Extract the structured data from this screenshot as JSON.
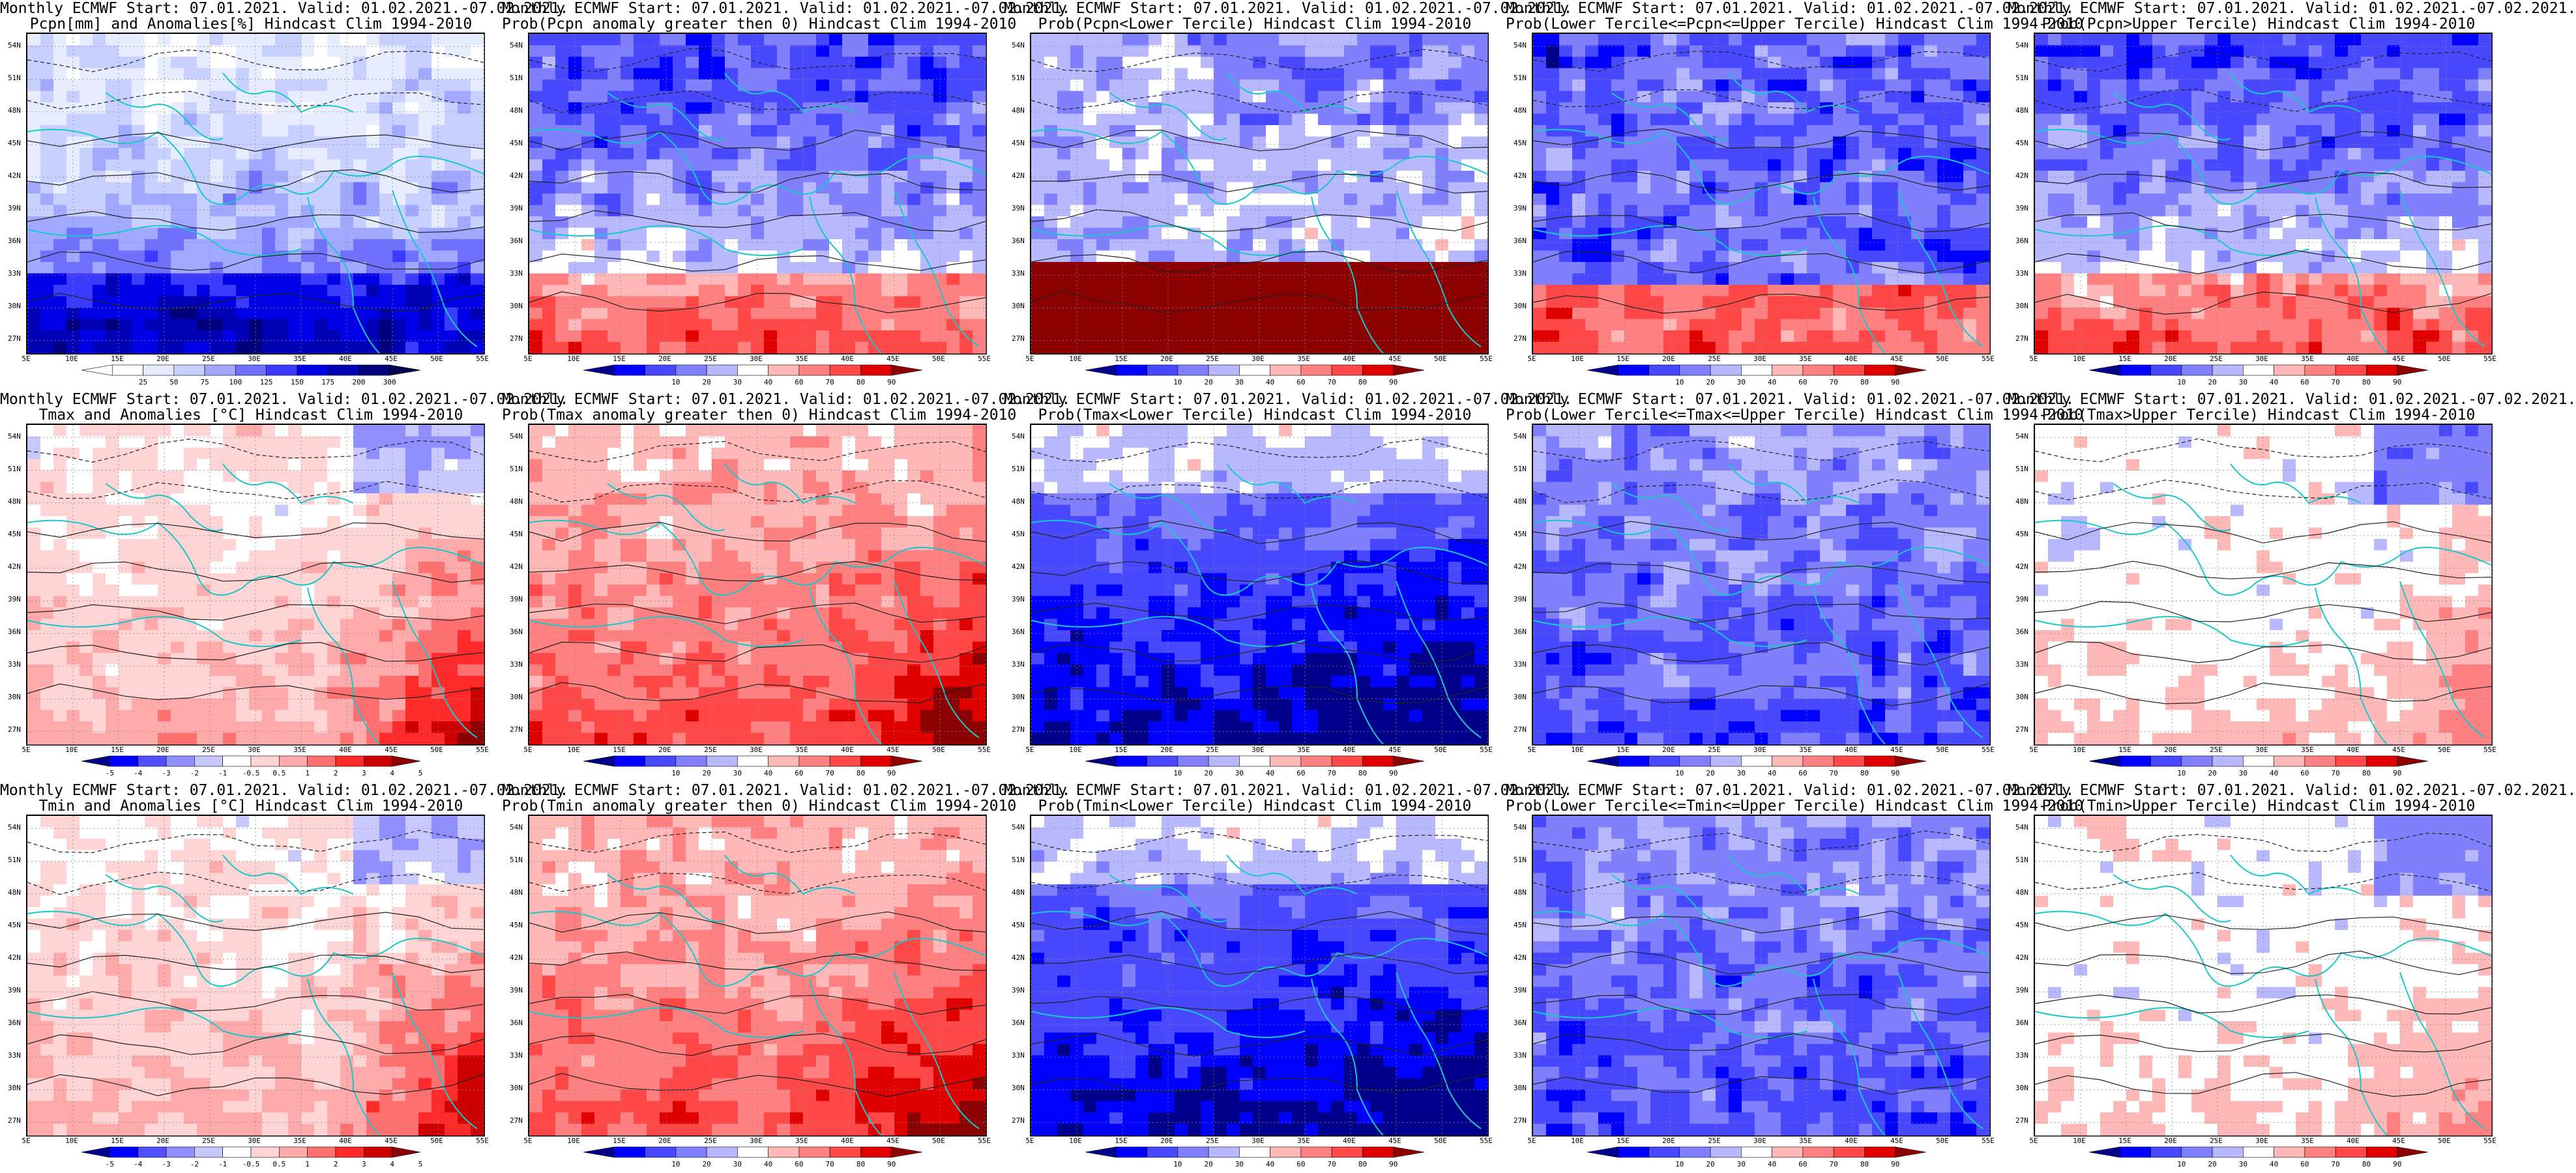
{
  "figure": {
    "columns": 5,
    "rows": 3,
    "lat_labels": [
      "54N",
      "51N",
      "48N",
      "45N",
      "42N",
      "39N",
      "36N",
      "33N",
      "30N",
      "27N"
    ],
    "lon_labels": [
      "5E",
      "10E",
      "15E",
      "20E",
      "25E",
      "30E",
      "35E",
      "40E",
      "45E",
      "50E",
      "55E"
    ],
    "palettes": {
      "precip_anom": [
        "#ffffff",
        "#ffffff",
        "#e8ecff",
        "#c8d0ff",
        "#a0a8ff",
        "#7070ff",
        "#3b3bff",
        "#0000e6",
        "#0000b4",
        "#00007d",
        "#00004b"
      ],
      "temp_anom": [
        "#00008b",
        "#0000ff",
        "#4f4fff",
        "#8f8fff",
        "#c8c8ff",
        "#ffffff",
        "#ffd4d4",
        "#ffaaaa",
        "#ff7070",
        "#ff2a2a",
        "#cc0000",
        "#8b0000"
      ],
      "prob": [
        "#00008b",
        "#0000ff",
        "#4848ff",
        "#8080ff",
        "#b8b8ff",
        "#ffffff",
        "#ffb8b8",
        "#ff8080",
        "#ff4848",
        "#e00000",
        "#8b0000"
      ]
    },
    "ticks": {
      "precip_anom": [
        "25",
        "50",
        "75",
        "100",
        "125",
        "150",
        "175",
        "200",
        "300"
      ],
      "temp_anom": [
        "-5",
        "-4",
        "-3",
        "-2",
        "-1",
        "-0.5",
        "0.5",
        "1",
        "2",
        "3",
        "4",
        "5"
      ],
      "prob": [
        "10",
        "20",
        "30",
        "40",
        "60",
        "70",
        "80",
        "90"
      ]
    }
  },
  "panels": [
    {
      "title_line1": "Monthly ECMWF Start: 07.01.2021. Valid: 01.02.2021.-07.02.2021.",
      "title_line2": "Pcpn[mm] and Anomalies[%] Hindcast Clim 1994-2010",
      "palette": "precip_anom",
      "pattern": "wetsouth"
    },
    {
      "title_line1": "Monthly ECMWF Start: 07.01.2021. Valid: 01.02.2021.-07.02.2021.",
      "title_line2": "Prob(Pcpn anomaly greater then 0) Hindcast Clim 1994-2010",
      "palette": "prob",
      "pattern": "wetsouth"
    },
    {
      "title_line1": "Monthly ECMWF Start: 07.01.2021. Valid: 01.02.2021.-07.02.2021.",
      "title_line2": "Prob(Pcpn<Lower Tercile) Hindcast Clim 1994-2010",
      "palette": "prob",
      "pattern": "drysouth"
    },
    {
      "title_line1": "Monthly ECMWF Start: 07.01.2021. Valid: 01.02.2021.-07.02.2021.",
      "title_line2": "Prob(Lower Tercile<=Pcpn<=Upper Tercile) Hindcast Clim 1994-2010",
      "palette": "prob",
      "pattern": "redsouth"
    },
    {
      "title_line1": "Monthly ECMWF Start: 07.01.2021. Valid: 01.02.2021.-07.02.2021.",
      "title_line2": "Prob(Pcpn>Upper Tercile) Hindcast Clim 1994-2010",
      "palette": "prob",
      "pattern": "wetsouth"
    },
    {
      "title_line1": "Monthly ECMWF Start: 07.01.2021. Valid: 01.02.2021.-07.02.2021.",
      "title_line2": "Tmax and Anomalies [°C] Hindcast Clim 1994-2010",
      "palette": "temp_anom",
      "pattern": "warmse"
    },
    {
      "title_line1": "Monthly ECMWF Start: 07.01.2021. Valid: 01.02.2021.-07.02.2021.",
      "title_line2": "Prob(Tmax anomaly greater then 0) Hindcast Clim 1994-2010",
      "palette": "prob",
      "pattern": "hotse"
    },
    {
      "title_line1": "Monthly ECMWF Start: 07.01.2021. Valid: 01.02.2021.-07.02.2021.",
      "title_line2": "Prob(Tmax<Lower Tercile) Hindcast Clim 1994-2010",
      "palette": "prob",
      "pattern": "bluesouth"
    },
    {
      "title_line1": "Monthly ECMWF Start: 07.01.2021. Valid: 01.02.2021.-07.02.2021.",
      "title_line2": "Prob(Lower Tercile<=Tmax<=Upper Tercile) Hindcast Clim 1994-2010",
      "palette": "prob",
      "pattern": "bluemix"
    },
    {
      "title_line1": "Monthly ECMWF Start: 07.01.2021. Valid: 01.02.2021.-07.02.2021.",
      "title_line2": "Prob(Tmax>Upper Tercile) Hindcast Clim 1994-2010",
      "palette": "prob",
      "pattern": "paleredse"
    },
    {
      "title_line1": "Monthly ECMWF Start: 07.01.2021. Valid: 01.02.2021.-07.02.2021.",
      "title_line2": "Tmin and Anomalies [°C] Hindcast Clim 1994-2010",
      "palette": "temp_anom",
      "pattern": "warmse"
    },
    {
      "title_line1": "Monthly ECMWF Start: 07.01.2021. Valid: 01.02.2021.-07.02.2021.",
      "title_line2": "Prob(Tmin anomaly greater then 0) Hindcast Clim 1994-2010",
      "palette": "prob",
      "pattern": "hotse"
    },
    {
      "title_line1": "Monthly ECMWF Start: 07.01.2021. Valid: 01.02.2021.-07.02.2021.",
      "title_line2": "Prob(Tmin<Lower Tercile) Hindcast Clim 1994-2010",
      "palette": "prob",
      "pattern": "bluesouth"
    },
    {
      "title_line1": "Monthly ECMWF Start: 07.01.2021. Valid: 01.02.2021.-07.02.2021.",
      "title_line2": "Prob(Lower Tercile<=Tmin<=Upper Tercile) Hindcast Clim 1994-2010",
      "palette": "prob",
      "pattern": "bluemix"
    },
    {
      "title_line1": "Monthly ECMWF Start: 07.01.2021. Valid: 01.02.2021.-07.02.2021.",
      "title_line2": "Prob(Tmin>Upper Tercile) Hindcast Clim 1994-2010",
      "palette": "prob",
      "pattern": "paleredse"
    }
  ]
}
